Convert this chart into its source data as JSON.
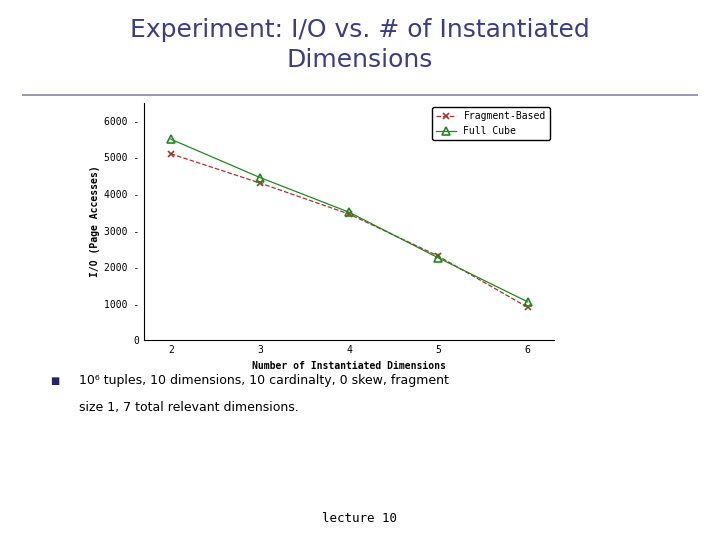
{
  "title_line1": "Experiment: I/O vs. # of Instantiated",
  "title_line2": "Dimensions",
  "title_color": "#3c3c8c",
  "title_fontsize": 18,
  "xlabel": "Number of Instantiated Dimensions",
  "ylabel": "I/O (Page Accesses)",
  "x": [
    2,
    3,
    4,
    5,
    6
  ],
  "fragment_based_y": [
    5100,
    4300,
    3450,
    2300,
    900
  ],
  "full_cube_y": [
    5500,
    4450,
    3500,
    2250,
    1050
  ],
  "fragment_color": "#aa3333",
  "full_cube_color": "#228822",
  "ylim": [
    0,
    6500
  ],
  "yticks": [
    0,
    1000,
    2000,
    3000,
    4000,
    5000,
    6000
  ],
  "xlim": [
    1.7,
    6.3
  ],
  "xticks": [
    2,
    3,
    4,
    5,
    6
  ],
  "legend_fragment": "Fragment-Based",
  "legend_fullcube": "Full Cube",
  "bullet_text_line1": "10⁶ tuples, 10 dimensions, 10 cardinalty, 0 skew, fragment",
  "bullet_text_line2": "size 1, 7 total relevant dimensions.",
  "footer_text": "lecture 10",
  "separator_color": "#9999bb",
  "bg_color": "#ffffff",
  "axis_label_fontsize": 7,
  "tick_fontsize": 7,
  "legend_fontsize": 7,
  "bullet_fontsize": 9,
  "footer_fontsize": 9
}
